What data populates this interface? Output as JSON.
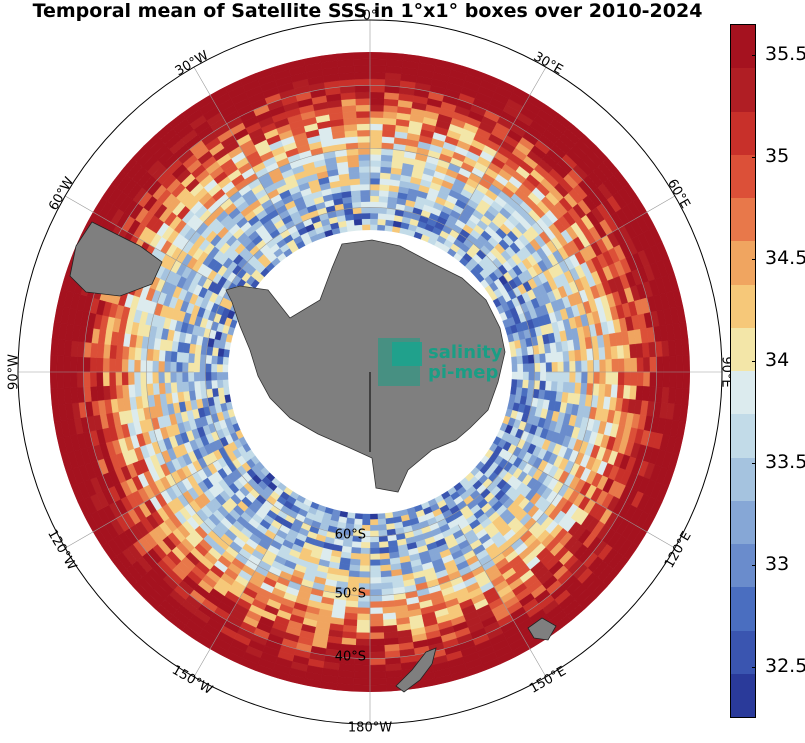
{
  "title": "Temporal mean of Satellite SSS in 1°x1° boxes over 2010-2024",
  "logo": {
    "line1": "salinity",
    "line2": "pi-mep",
    "color": "#1a9e85"
  },
  "longitude_labels": [
    "0°",
    "30°E",
    "60°E",
    "90°E",
    "120°E",
    "150°E",
    "180°W",
    "150°W",
    "120°W",
    "90°W",
    "60°W",
    "30°W"
  ],
  "latitude_labels": [
    "60°S",
    "50°S",
    "40°S"
  ],
  "colorbar": {
    "min": 32.25,
    "max": 35.65,
    "ticks": [
      "32.5",
      "33",
      "33.5",
      "34",
      "34.5",
      "35",
      "35.5"
    ],
    "colors": [
      "#2a3a9a",
      "#3a55b0",
      "#4a6ec0",
      "#6a8ccc",
      "#86a7d6",
      "#a5c3df",
      "#c2dbe8",
      "#dcebee",
      "#f3e6a8",
      "#f6c879",
      "#f0a560",
      "#e8784a",
      "#dc5038",
      "#c8302a",
      "#b01e24",
      "#a5121f"
    ]
  },
  "chart_data": {
    "type": "heatmap",
    "projection": "south-polar-stereographic",
    "variable": "Sea Surface Salinity",
    "period": "2010-2024",
    "grid": "1°x1° boxes",
    "clim": [
      32.25,
      35.65
    ],
    "lat_range": [
      -90,
      -35
    ],
    "colormap": [
      "#2a3a9a",
      "#3a55b0",
      "#4a6ec0",
      "#6a8ccc",
      "#86a7d6",
      "#a5c3df",
      "#c2dbe8",
      "#dcebee",
      "#f3e6a8",
      "#f6c879",
      "#f0a560",
      "#e8784a",
      "#dc5038",
      "#c8302a",
      "#b01e24",
      "#a5121f"
    ]
  }
}
